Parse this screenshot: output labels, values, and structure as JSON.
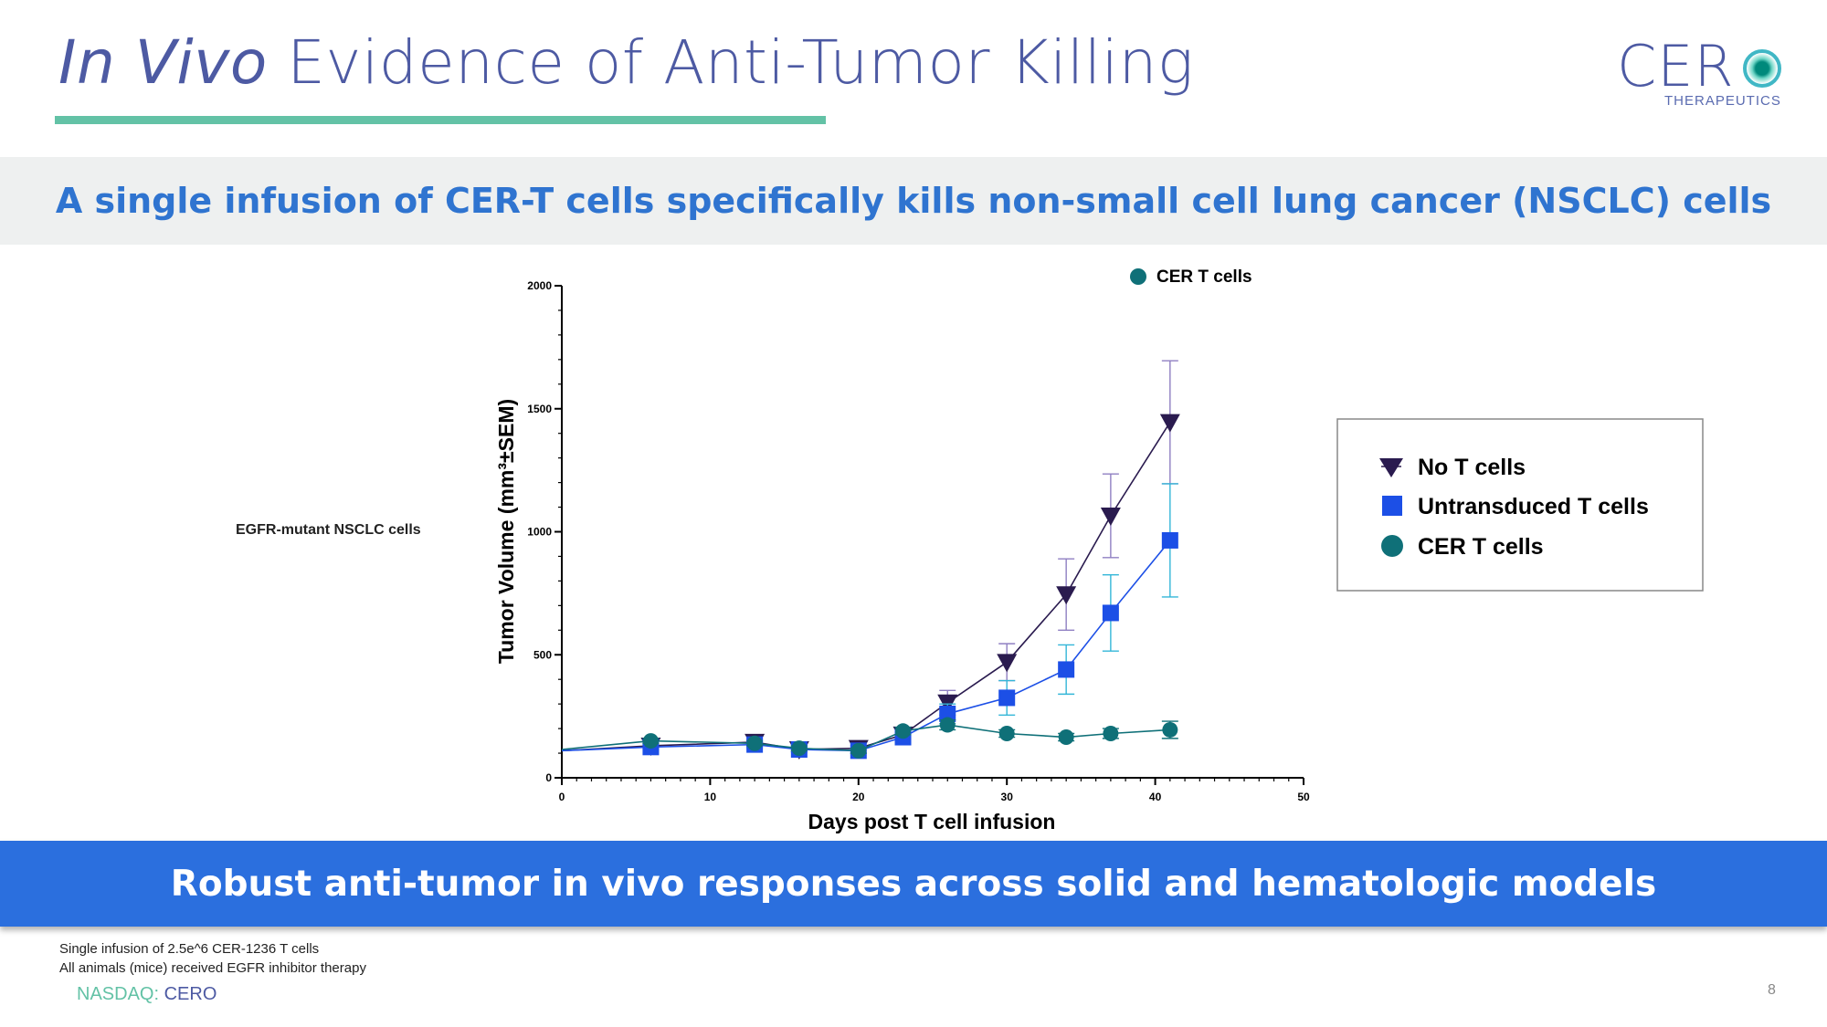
{
  "title": {
    "italic": "In Vivo",
    "rest": "Evidence of Anti-Tumor Killing"
  },
  "logo": {
    "word": "CER",
    "sub": "THERAPEUTICS"
  },
  "top_banner": "A single infusion of CER-T cells specifically kills non-small cell lung cancer (NSCLC) cells",
  "side_label": "EGFR-mutant NSCLC cells",
  "bottom_banner": "Robust anti-tumor in vivo responses across solid and hematologic models",
  "footnotes": [
    "Single infusion of 2.5e^6 CER-1236 T cells",
    "All animals (mice) received EGFR inhibitor therapy"
  ],
  "footer": {
    "exchange": "NASDAQ:",
    "symbol": "CERO"
  },
  "page_number": "8",
  "colors": {
    "no_t": "#2a1b4f",
    "untransduced": "#1c4fe6",
    "cer": "#0f7078",
    "accent": "#63c2a6",
    "brand": "#4d5aa3",
    "banner": "#2b6fde"
  },
  "chart_data": {
    "type": "line",
    "xlabel": "Days post T cell infusion",
    "ylabel": "Tumor Volume (mm³±SEM)",
    "xlim": [
      0,
      50
    ],
    "ylim": [
      0,
      2000
    ],
    "xticks": [
      0,
      10,
      20,
      30,
      40,
      50
    ],
    "yticks": [
      0,
      500,
      1000,
      1500,
      2000
    ],
    "top_legend": "CER T cells",
    "legend": [
      "No T cells",
      "Untransduced T cells",
      "CER T cells"
    ],
    "series": [
      {
        "name": "No T cells",
        "marker": "triangle-down",
        "color": "#2a1b4f",
        "error_color": "#8f7fc2",
        "x": [
          0,
          6,
          13,
          16,
          20,
          23,
          26,
          30,
          34,
          37,
          41
        ],
        "y": [
          110,
          130,
          145,
          115,
          120,
          175,
          305,
          470,
          745,
          1065,
          1445
        ],
        "sem": [
          0,
          10,
          12,
          10,
          10,
          20,
          50,
          75,
          145,
          170,
          250
        ]
      },
      {
        "name": "Untransduced T cells",
        "marker": "square",
        "color": "#1c4fe6",
        "error_color": "#33b6d8",
        "x": [
          0,
          6,
          13,
          16,
          20,
          23,
          26,
          30,
          34,
          37,
          41
        ],
        "y": [
          110,
          125,
          135,
          115,
          110,
          165,
          260,
          325,
          440,
          670,
          965
        ],
        "sem": [
          0,
          10,
          12,
          10,
          10,
          20,
          40,
          70,
          100,
          155,
          230
        ]
      },
      {
        "name": "CER T cells",
        "marker": "circle",
        "color": "#0f7078",
        "error_color": "#0f7078",
        "x": [
          0,
          6,
          13,
          16,
          20,
          23,
          26,
          30,
          34,
          37,
          41
        ],
        "y": [
          115,
          150,
          140,
          120,
          110,
          190,
          215,
          180,
          165,
          180,
          195
        ],
        "sem": [
          0,
          10,
          10,
          10,
          10,
          15,
          20,
          15,
          15,
          20,
          35
        ]
      }
    ]
  }
}
